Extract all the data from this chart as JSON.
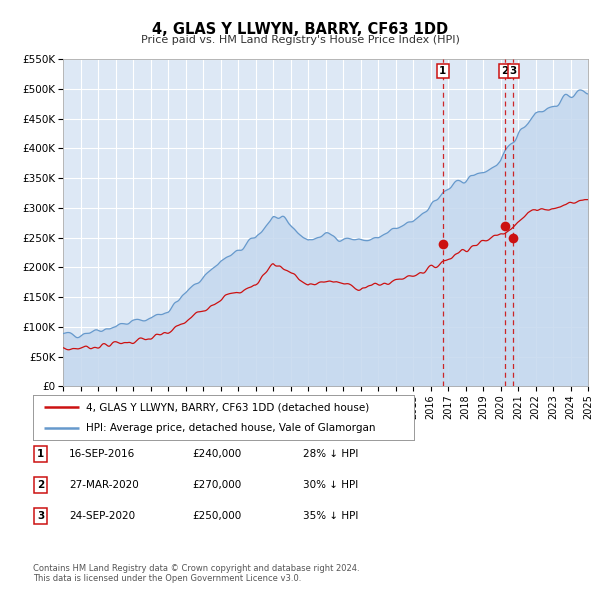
{
  "title": "4, GLAS Y LLWYN, BARRY, CF63 1DD",
  "subtitle": "Price paid vs. HM Land Registry's House Price Index (HPI)",
  "xlim": [
    1995,
    2025
  ],
  "ylim": [
    0,
    550000
  ],
  "yticks": [
    0,
    50000,
    100000,
    150000,
    200000,
    250000,
    300000,
    350000,
    400000,
    450000,
    500000,
    550000
  ],
  "ytick_labels": [
    "£0",
    "£50K",
    "£100K",
    "£150K",
    "£200K",
    "£250K",
    "£300K",
    "£350K",
    "£400K",
    "£450K",
    "£500K",
    "£550K"
  ],
  "fig_bg": "#ffffff",
  "plot_bg": "#dde8f5",
  "grid_color": "#ffffff",
  "hpi_color": "#6699cc",
  "hpi_fill_color": "#c5d8ee",
  "price_color": "#cc1111",
  "marker_color": "#cc1111",
  "dashed_color": "#cc1111",
  "hpi_base": {
    "1995": 85000,
    "1996": 90000,
    "1997": 96000,
    "1998": 102000,
    "1999": 108000,
    "2000": 115000,
    "2001": 128000,
    "2002": 155000,
    "2003": 185000,
    "2004": 210000,
    "2005": 225000,
    "2006": 250000,
    "2007": 285000,
    "2008": 270000,
    "2009": 245000,
    "2010": 255000,
    "2011": 250000,
    "2012": 245000,
    "2013": 248000,
    "2014": 262000,
    "2015": 278000,
    "2016": 305000,
    "2017": 330000,
    "2018": 348000,
    "2019": 360000,
    "2020": 375000,
    "2021": 425000,
    "2022": 462000,
    "2023": 470000,
    "2024": 490000,
    "2025": 498000
  },
  "price_base": {
    "1995": 62000,
    "1996": 65000,
    "1997": 68000,
    "1998": 72000,
    "1999": 76000,
    "2000": 80000,
    "2001": 90000,
    "2002": 108000,
    "2003": 130000,
    "2004": 148000,
    "2005": 158000,
    "2006": 170000,
    "2007": 208000,
    "2008": 192000,
    "2009": 168000,
    "2010": 178000,
    "2011": 172000,
    "2012": 166000,
    "2013": 170000,
    "2014": 178000,
    "2015": 188000,
    "2016": 198000,
    "2017": 215000,
    "2018": 232000,
    "2019": 242000,
    "2020": 258000,
    "2021": 275000,
    "2022": 300000,
    "2023": 298000,
    "2024": 308000,
    "2025": 315000
  },
  "sale_dates": [
    2016.71,
    2020.24,
    2020.73
  ],
  "sale_prices": [
    240000,
    270000,
    250000
  ],
  "sale_labels": [
    "1",
    "2",
    "3"
  ],
  "sale_info": [
    {
      "num": "1",
      "date": "16-SEP-2016",
      "price": "£240,000",
      "pct": "28% ↓ HPI"
    },
    {
      "num": "2",
      "date": "27-MAR-2020",
      "price": "£270,000",
      "pct": "30% ↓ HPI"
    },
    {
      "num": "3",
      "date": "24-SEP-2020",
      "price": "£250,000",
      "pct": "35% ↓ HPI"
    }
  ],
  "legend_label_price": "4, GLAS Y LLWYN, BARRY, CF63 1DD (detached house)",
  "legend_label_hpi": "HPI: Average price, detached house, Vale of Glamorgan",
  "footer": "Contains HM Land Registry data © Crown copyright and database right 2024.\nThis data is licensed under the Open Government Licence v3.0.",
  "hpi_noise_seed": 42,
  "hpi_noise_scale": 9000,
  "hpi_noise_sigma": 2.5,
  "price_noise_seed": 7,
  "price_noise_scale": 6000,
  "price_noise_sigma": 2.0,
  "n_points": 500
}
